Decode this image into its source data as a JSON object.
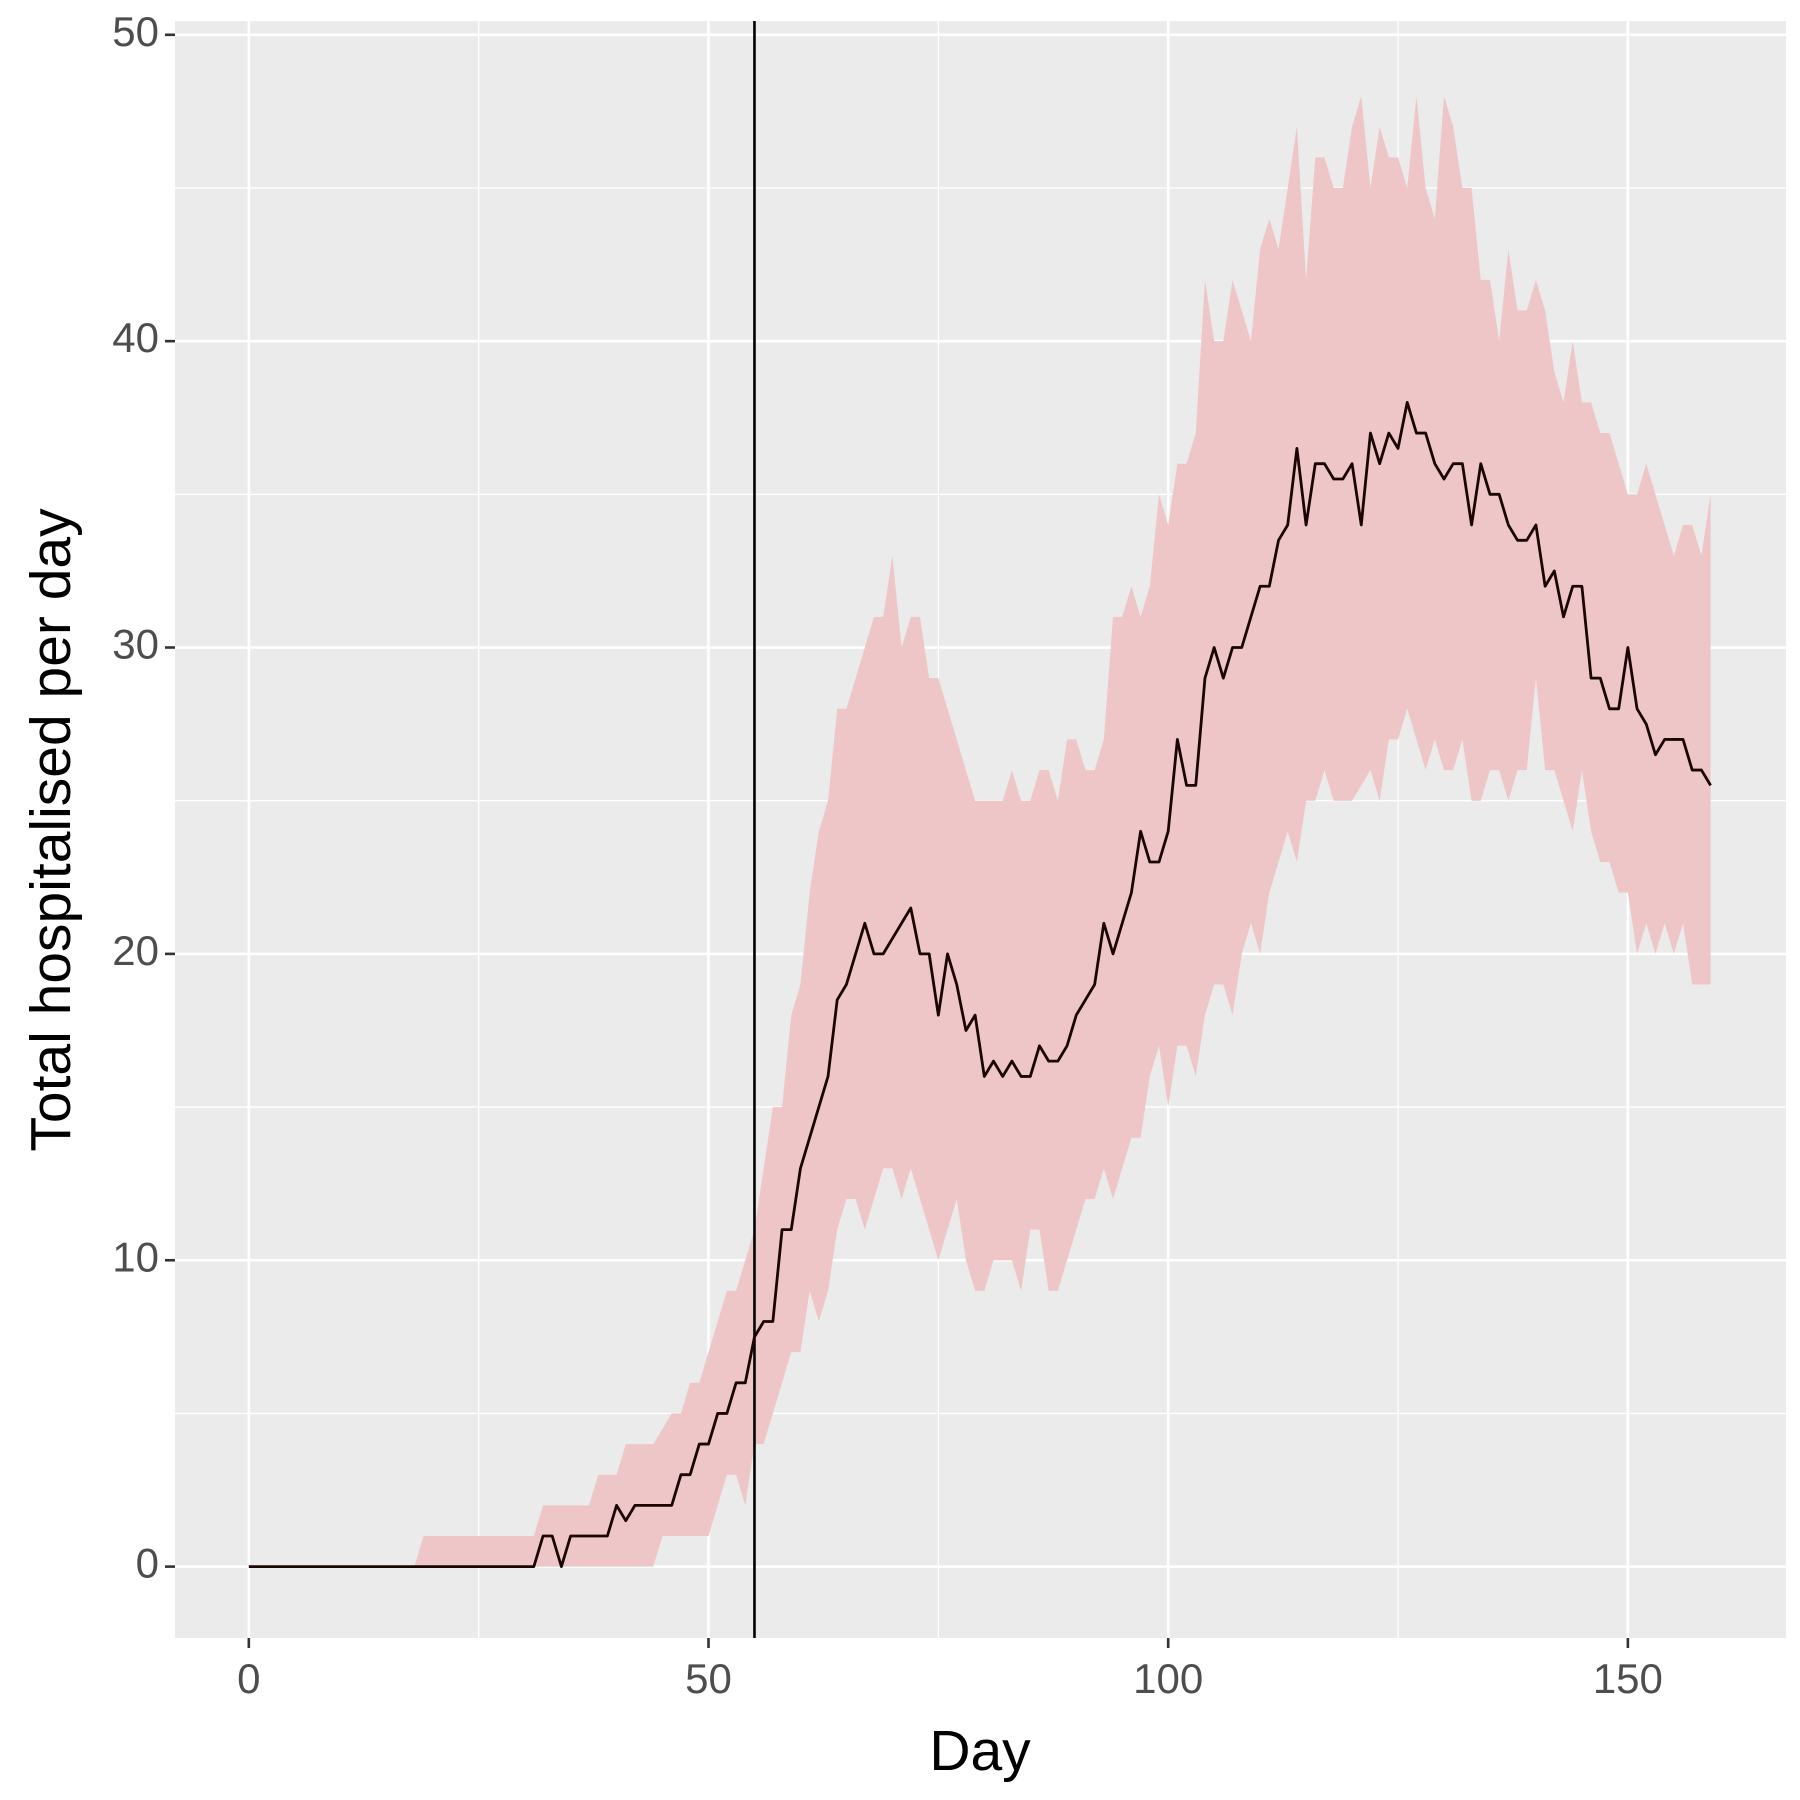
{
  "chart_data": {
    "type": "line",
    "x_label": "Day",
    "y_label": "Total hospitalised per day",
    "xlim": [
      -8.03,
      167.2
    ],
    "ylim": [
      -2.33,
      50.45
    ],
    "xticks": [
      0,
      50,
      100,
      150
    ],
    "yticks": [
      0,
      10,
      20,
      30,
      40,
      50
    ],
    "x_minor_ticks": [
      25,
      75,
      125
    ],
    "y_minor_ticks": [
      5,
      15,
      25,
      35,
      45
    ],
    "grid": true,
    "background": "#EBEBEB",
    "vline": {
      "x": 55,
      "color": "#000000"
    },
    "x": [
      0,
      1,
      2,
      3,
      4,
      5,
      6,
      7,
      8,
      9,
      10,
      11,
      12,
      13,
      14,
      15,
      16,
      17,
      18,
      19,
      20,
      21,
      22,
      23,
      24,
      25,
      26,
      27,
      28,
      29,
      30,
      31,
      32,
      33,
      34,
      35,
      36,
      37,
      38,
      39,
      40,
      41,
      42,
      43,
      44,
      45,
      46,
      47,
      48,
      49,
      50,
      51,
      52,
      53,
      54,
      55,
      56,
      57,
      58,
      59,
      60,
      61,
      62,
      63,
      64,
      65,
      66,
      67,
      68,
      69,
      70,
      71,
      72,
      73,
      74,
      75,
      76,
      77,
      78,
      79,
      80,
      81,
      82,
      83,
      84,
      85,
      86,
      87,
      88,
      89,
      90,
      91,
      92,
      93,
      94,
      95,
      96,
      97,
      98,
      99,
      100,
      101,
      102,
      103,
      104,
      105,
      106,
      107,
      108,
      109,
      110,
      111,
      112,
      113,
      114,
      115,
      116,
      117,
      118,
      119,
      120,
      121,
      122,
      123,
      124,
      125,
      126,
      127,
      128,
      129,
      130,
      131,
      132,
      133,
      134,
      135,
      136,
      137,
      138,
      139,
      140,
      141,
      142,
      143,
      144,
      145,
      146,
      147,
      148,
      149,
      150,
      151,
      152,
      153,
      154,
      155,
      156,
      157,
      158,
      159
    ],
    "line": {
      "color": "#1A0505",
      "values": [
        0,
        0,
        0,
        0,
        0,
        0,
        0,
        0,
        0,
        0,
        0,
        0,
        0,
        0,
        0,
        0,
        0,
        0,
        0,
        0,
        0,
        0,
        0,
        0,
        0,
        0,
        0,
        0,
        0,
        0,
        0,
        0,
        1,
        1,
        0,
        1,
        1,
        1,
        1,
        1,
        2,
        1.5,
        2,
        2,
        2,
        2,
        2,
        3,
        3,
        4,
        4,
        5,
        5,
        6,
        6,
        7.5,
        8,
        8,
        11,
        11,
        13,
        14,
        15,
        16,
        18.5,
        19,
        20,
        21,
        20,
        20,
        20.5,
        21,
        21.5,
        20,
        20,
        18,
        20,
        19,
        17.5,
        18,
        16,
        16.5,
        16,
        16.5,
        16,
        16,
        17,
        16.5,
        16.5,
        17,
        18,
        18.5,
        19,
        21,
        20,
        21,
        22,
        24,
        23,
        23,
        24,
        27,
        25.5,
        25.5,
        29,
        30,
        29,
        30,
        30,
        31,
        32,
        32,
        33.5,
        34,
        36.5,
        34,
        36,
        36,
        35.5,
        35.5,
        36,
        34,
        37,
        36,
        37,
        36.5,
        38,
        37,
        37,
        36,
        35.5,
        36,
        36,
        34,
        36,
        35,
        35,
        34,
        33.5,
        33.5,
        34,
        32,
        32.5,
        31,
        32,
        32,
        29,
        29,
        28,
        28,
        30,
        28,
        27.5,
        26.5,
        27,
        27,
        27,
        26,
        26,
        25.5
      ]
    },
    "ribbon": {
      "color": "#EEC6C8",
      "lower": [
        0,
        0,
        0,
        0,
        0,
        0,
        0,
        0,
        0,
        0,
        0,
        0,
        0,
        0,
        0,
        0,
        0,
        0,
        0,
        0,
        0,
        0,
        0,
        0,
        0,
        0,
        0,
        0,
        0,
        0,
        0,
        0,
        0,
        0,
        0,
        0,
        0,
        0,
        0,
        0,
        0,
        0,
        0,
        0,
        0,
        1,
        1,
        1,
        1,
        1,
        1,
        2,
        3,
        3,
        2,
        4,
        4,
        5,
        6,
        7,
        7,
        9,
        8,
        9,
        11,
        12,
        12,
        11,
        12,
        13,
        13,
        12,
        13,
        12,
        11,
        10,
        11,
        12,
        10,
        9,
        9,
        10,
        10,
        10,
        9,
        11,
        11,
        9,
        9,
        10,
        11,
        12,
        12,
        13,
        12,
        13,
        14,
        14,
        16,
        17,
        15,
        17,
        17,
        16,
        18,
        19,
        19,
        18,
        20,
        21,
        20,
        22,
        23,
        24,
        23,
        25,
        25,
        26,
        25,
        25,
        25,
        25.5,
        26,
        25,
        27,
        27,
        28,
        27,
        26,
        27,
        26,
        26,
        27,
        25,
        25,
        26,
        26,
        25,
        26,
        26,
        29,
        26,
        26,
        25,
        24,
        26,
        24,
        23,
        23,
        22,
        22,
        20,
        21,
        20,
        21,
        20,
        21,
        19,
        19,
        19
      ],
      "upper": [
        0,
        0,
        0,
        0,
        0,
        0,
        0,
        0,
        0,
        0,
        0,
        0,
        0,
        0,
        0,
        0,
        0,
        0,
        0,
        1,
        1,
        1,
        1,
        1,
        1,
        1,
        1,
        1,
        1,
        1,
        1,
        1,
        2,
        2,
        2,
        2,
        2,
        2,
        3,
        3,
        3,
        4,
        4,
        4,
        4,
        4.5,
        5,
        5,
        6,
        6,
        7,
        8,
        9,
        9,
        10,
        11,
        13,
        15,
        15,
        18,
        19,
        22,
        24,
        25,
        28,
        28,
        29,
        30,
        31,
        31,
        33,
        30,
        31,
        31,
        29,
        29,
        28,
        27,
        26,
        25,
        25,
        25,
        25,
        26,
        25,
        25,
        26,
        26,
        25,
        27,
        27,
        26,
        26,
        27,
        31,
        31,
        32,
        31,
        32,
        35,
        34,
        36,
        36,
        37,
        42,
        40,
        40,
        42,
        41,
        40,
        43,
        44,
        43,
        45,
        47,
        42,
        46,
        46,
        45,
        45,
        47,
        48,
        45,
        47,
        46,
        46,
        45,
        48,
        45,
        44,
        48,
        47,
        45,
        45,
        42,
        42,
        40,
        43,
        41,
        41,
        42,
        41,
        39,
        38,
        40,
        38,
        38,
        37,
        37,
        36,
        35,
        35,
        36,
        35,
        34,
        33,
        34,
        34,
        33,
        35
      ]
    }
  }
}
